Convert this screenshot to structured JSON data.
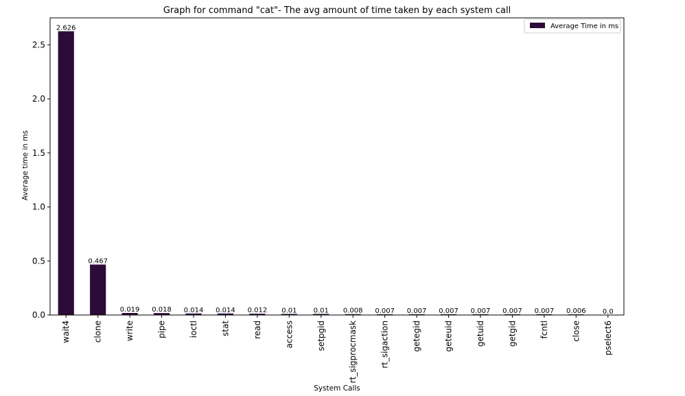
{
  "chart_data": {
    "type": "bar",
    "title": "Graph for command \"cat\"- The avg amount of time taken by each system call",
    "xlabel": "System Calls",
    "ylabel": "Average time in ms",
    "ylim": [
      0,
      2.75
    ],
    "yticks": [
      "0.0",
      "0.5",
      "1.0",
      "1.5",
      "2.0",
      "2.5"
    ],
    "categories": [
      "wait4",
      "clone",
      "write",
      "pipe",
      "ioctl",
      "stat",
      "read",
      "access",
      "setpgid",
      "rt_sigprocmask",
      "rt_sigaction",
      "getegid",
      "geteuid",
      "getuid",
      "getgid",
      "fcntl",
      "close",
      "pselect6"
    ],
    "series": [
      {
        "name": "Average Time in ms",
        "color": "#2e0a3a",
        "values": [
          2.626,
          0.467,
          0.019,
          0.018,
          0.014,
          0.014,
          0.012,
          0.01,
          0.01,
          0.008,
          0.007,
          0.007,
          0.007,
          0.007,
          0.007,
          0.007,
          0.006,
          0.0
        ],
        "labels": [
          "2.626",
          "0.467",
          "0.019",
          "0.018",
          "0.014",
          "0.014",
          "0.012",
          "0.01",
          "0.01",
          "0.008",
          "0.007",
          "0.007",
          "0.007",
          "0.007",
          "0.007",
          "0.007",
          "0.006",
          "0.0"
        ]
      }
    ],
    "legend": "top-right",
    "grid": false
  }
}
